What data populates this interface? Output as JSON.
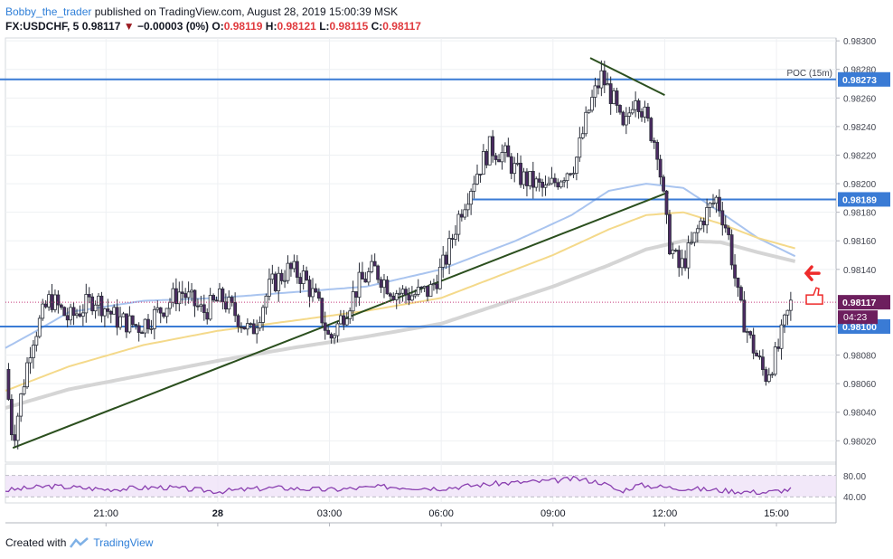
{
  "header": {
    "author": "Bobby_the_trader",
    "published": "published on TradingView.com, August 28, 2019 15:00:39 MSK",
    "symbol": "FX:USDCHF, 5",
    "last": "0.98117",
    "change": "−0.00003 (0%)",
    "o_label": "O:",
    "o_value": "0.98119",
    "h_label": "H:",
    "h_value": "0.98121",
    "l_label": "L:",
    "l_value": "0.98115",
    "c_label": "C:",
    "c_value": "0.98117"
  },
  "footer": {
    "created": "Created with",
    "brand": "TradingView"
  },
  "chart_data": {
    "type": "candlestick",
    "y_axis": {
      "min": 0.98005,
      "max": 0.98302,
      "ticks": [
        "0.98300",
        "0.98280",
        "0.98260",
        "0.98240",
        "0.98220",
        "0.98200",
        "0.98180",
        "0.98160",
        "0.98140",
        "0.98100",
        "0.98080",
        "0.98060",
        "0.98040",
        "0.98020"
      ]
    },
    "x_axis": {
      "tick_labels": [
        {
          "label": "21:00",
          "hour": 3
        },
        {
          "label": "28",
          "hour": 6
        },
        {
          "label": "03:00",
          "hour": 9
        },
        {
          "label": "06:00",
          "hour": 12
        },
        {
          "label": "09:00",
          "hour": 15
        },
        {
          "label": "12:00",
          "hour": 18
        },
        {
          "label": "15:00",
          "hour": 21
        }
      ],
      "range_hours": [
        0.3,
        22.6
      ]
    },
    "anchors": [
      [
        0.3,
        0.9807
      ],
      [
        0.5,
        0.9802
      ],
      [
        1.0,
        0.9809
      ],
      [
        1.5,
        0.9812
      ],
      [
        2.0,
        0.98105
      ],
      [
        2.7,
        0.9812
      ],
      [
        3.3,
        0.98105
      ],
      [
        3.9,
        0.981
      ],
      [
        4.4,
        0.9811
      ],
      [
        5.0,
        0.98125
      ],
      [
        5.6,
        0.9811
      ],
      [
        6.1,
        0.9812
      ],
      [
        6.5,
        0.98108
      ],
      [
        6.9,
        0.98095
      ],
      [
        7.4,
        0.98128
      ],
      [
        7.9,
        0.9814
      ],
      [
        8.3,
        0.98135
      ],
      [
        8.7,
        0.98115
      ],
      [
        9.0,
        0.9809
      ],
      [
        9.3,
        0.98105
      ],
      [
        9.8,
        0.9813
      ],
      [
        10.2,
        0.9814
      ],
      [
        10.7,
        0.98125
      ],
      [
        11.2,
        0.98122
      ],
      [
        11.7,
        0.98125
      ],
      [
        12.1,
        0.98145
      ],
      [
        12.5,
        0.9818
      ],
      [
        12.9,
        0.98205
      ],
      [
        13.3,
        0.98225
      ],
      [
        13.7,
        0.9822
      ],
      [
        14.1,
        0.98205
      ],
      [
        14.5,
        0.982
      ],
      [
        14.8,
        0.98195
      ],
      [
        15.2,
        0.98205
      ],
      [
        15.6,
        0.98215
      ],
      [
        16.0,
        0.98255
      ],
      [
        16.3,
        0.98275
      ],
      [
        16.6,
        0.9826
      ],
      [
        16.9,
        0.98235
      ],
      [
        17.2,
        0.98265
      ],
      [
        17.5,
        0.98245
      ],
      [
        17.8,
        0.98225
      ],
      [
        18.1,
        0.9816
      ],
      [
        18.4,
        0.9814
      ],
      [
        18.7,
        0.98155
      ],
      [
        19.0,
        0.98175
      ],
      [
        19.4,
        0.9819
      ],
      [
        19.7,
        0.98165
      ],
      [
        20.0,
        0.98115
      ],
      [
        20.3,
        0.9809
      ],
      [
        20.7,
        0.98065
      ],
      [
        21.0,
        0.9808
      ],
      [
        21.2,
        0.981
      ],
      [
        21.4,
        0.98117
      ]
    ],
    "rsi": {
      "levels": [
        70,
        30
      ],
      "tick_labels": [
        "80.00",
        "40.00"
      ],
      "anchors": [
        [
          0.3,
          42
        ],
        [
          1.5,
          50
        ],
        [
          3.0,
          44
        ],
        [
          4.5,
          48
        ],
        [
          6.0,
          40
        ],
        [
          7.5,
          47
        ],
        [
          9.0,
          43
        ],
        [
          10.5,
          49
        ],
        [
          12.0,
          46
        ],
        [
          13.5,
          55
        ],
        [
          15.0,
          60
        ],
        [
          15.6,
          64
        ],
        [
          16.3,
          57
        ],
        [
          16.8,
          40
        ],
        [
          17.3,
          52
        ],
        [
          18.2,
          47
        ],
        [
          19.0,
          44
        ],
        [
          20.0,
          40
        ],
        [
          20.7,
          38
        ],
        [
          21.4,
          44
        ]
      ]
    },
    "moving_averages": [
      {
        "color": "#a9c4ef",
        "width": 2,
        "anchors": [
          [
            0.3,
            0.98085
          ],
          [
            1.0,
            0.98095
          ],
          [
            2.0,
            0.9811
          ],
          [
            4.0,
            0.98118
          ],
          [
            6.0,
            0.9812
          ],
          [
            8.0,
            0.98124
          ],
          [
            10.0,
            0.98128
          ],
          [
            12.0,
            0.9814
          ],
          [
            14.0,
            0.9816
          ],
          [
            15.5,
            0.98178
          ],
          [
            16.5,
            0.98195
          ],
          [
            17.5,
            0.982
          ],
          [
            18.5,
            0.98197
          ],
          [
            19.5,
            0.9818
          ],
          [
            20.5,
            0.98162
          ],
          [
            21.6,
            0.98148
          ]
        ]
      },
      {
        "color": "#f4d98a",
        "width": 2,
        "anchors": [
          [
            0.3,
            0.98055
          ],
          [
            2.0,
            0.98072
          ],
          [
            4.0,
            0.98087
          ],
          [
            6.0,
            0.98097
          ],
          [
            8.0,
            0.98104
          ],
          [
            10.0,
            0.98111
          ],
          [
            12.0,
            0.9812
          ],
          [
            13.5,
            0.98135
          ],
          [
            15.0,
            0.9815
          ],
          [
            16.5,
            0.98168
          ],
          [
            17.5,
            0.98178
          ],
          [
            18.5,
            0.9818
          ],
          [
            19.5,
            0.98172
          ],
          [
            20.5,
            0.98162
          ],
          [
            21.6,
            0.98154
          ]
        ]
      },
      {
        "color": "#d5d5d5",
        "width": 4,
        "anchors": [
          [
            0.3,
            0.98043
          ],
          [
            2.0,
            0.98056
          ],
          [
            4.0,
            0.98066
          ],
          [
            6.0,
            0.98076
          ],
          [
            8.0,
            0.98085
          ],
          [
            10.0,
            0.98093
          ],
          [
            12.0,
            0.98102
          ],
          [
            13.5,
            0.98115
          ],
          [
            15.0,
            0.98128
          ],
          [
            16.5,
            0.98143
          ],
          [
            17.5,
            0.98154
          ],
          [
            18.5,
            0.9816
          ],
          [
            19.5,
            0.98159
          ],
          [
            20.5,
            0.98152
          ],
          [
            21.6,
            0.98145
          ]
        ]
      }
    ],
    "price_lines": [
      {
        "value": 0.98273,
        "label": "0.98273",
        "hour_from": 0,
        "hour_to": 22.6
      },
      {
        "value": 0.98189,
        "label": "0.98189",
        "hour_from": 12.8,
        "hour_to": 22.6
      },
      {
        "value": 0.981,
        "label": "0.98100",
        "hour_from": 0,
        "hour_to": 22.6
      }
    ],
    "last_price": {
      "value": 0.98117,
      "label": "0.98117",
      "countdown": "04:23"
    },
    "trendlines": [
      {
        "color": "#2b4f1e",
        "from": [
          0.5,
          0.98015
        ],
        "to": [
          18.1,
          0.98194
        ]
      },
      {
        "color": "#2b4f1e",
        "from": [
          16.0,
          0.98288
        ],
        "to": [
          18.0,
          0.98262
        ]
      }
    ],
    "annotations": [
      {
        "text": "POC (15m)",
        "value": 0.98273
      }
    ],
    "colors": {
      "up": "#ffffff",
      "down": "#4c2a63",
      "grid": "#eef0f3",
      "line": "#3a7bd5",
      "last": "#c53a7a",
      "arrow": "#ee2b2b"
    }
  }
}
